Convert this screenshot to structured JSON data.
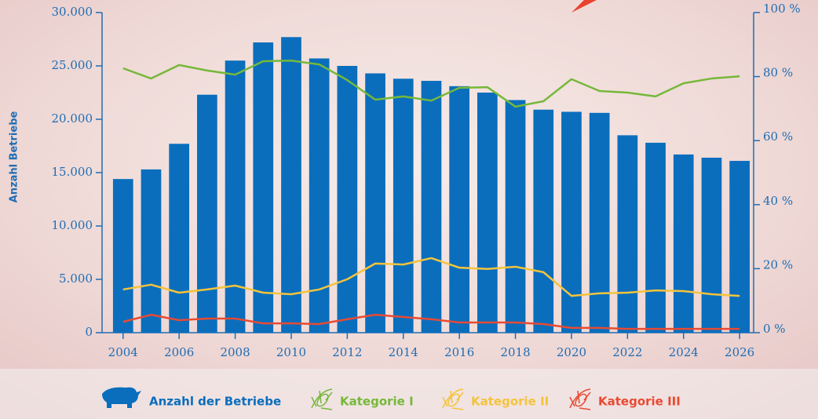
{
  "chart_data": {
    "type": "bar",
    "y_label": "Anzahl Betriebe",
    "x": [
      2004,
      2005,
      2006,
      2007,
      2008,
      2009,
      2010,
      2011,
      2012,
      2013,
      2014,
      2015,
      2016,
      2017,
      2018,
      2019,
      2020,
      2021,
      2022,
      2023,
      2024,
      2025,
      2026
    ],
    "xlim": [
      2003.25,
      2026.5
    ],
    "xticks": [
      2004,
      2006,
      2008,
      2010,
      2012,
      2014,
      2016,
      2018,
      2020,
      2022,
      2024,
      2026
    ],
    "ylim": [
      0,
      30000
    ],
    "yticks": [
      0,
      {
        "value": 5000,
        "label": "5.000"
      },
      {
        "value": 10000,
        "label": "10.000"
      },
      {
        "value": 15000,
        "label": "15.000"
      },
      {
        "value": 20000,
        "label": "20.000"
      },
      {
        "value": 25000,
        "label": "25.000"
      },
      {
        "value": 30000,
        "label": "30.000"
      }
    ],
    "y2lim": [
      0,
      100
    ],
    "y2ticks": [
      {
        "value": 0,
        "label": "0 %"
      },
      {
        "value": 20,
        "label": "20 %"
      },
      {
        "value": 40,
        "label": "40 %"
      },
      {
        "value": 60,
        "label": "60 %"
      },
      {
        "value": 80,
        "label": "80 %"
      },
      {
        "value": 100,
        "label": "100 %"
      }
    ],
    "series": [
      {
        "name": "Anzahl der Betriebe",
        "type": "bar",
        "axis": "y",
        "color": "#0a6ebd",
        "values": [
          14400,
          15300,
          17700,
          22300,
          25500,
          27200,
          27700,
          25700,
          25000,
          24300,
          23800,
          23600,
          23100,
          22500,
          21800,
          20900,
          20700,
          20600,
          18500,
          17800,
          16700,
          16400,
          16100
        ]
      },
      {
        "name": "Kategorie I",
        "type": "line",
        "axis": "y2",
        "color": "#76b83a",
        "values": [
          82.6,
          79.4,
          83.6,
          81.9,
          80.6,
          84.8,
          85,
          83.8,
          78.9,
          72.8,
          73.8,
          72.5,
          76.5,
          76.7,
          70.6,
          72.3,
          79.2,
          75.5,
          75,
          73.8,
          77.9,
          79.4,
          80.1
        ]
      },
      {
        "name": "Kategorie II",
        "type": "line",
        "axis": "y2",
        "color": "#f5c33b",
        "values": [
          13.5,
          15,
          12.5,
          13.5,
          14.7,
          12.5,
          12,
          13.5,
          16.7,
          21.6,
          21.3,
          23.3,
          20.3,
          19.9,
          20.6,
          18.9,
          11.5,
          12.3,
          12.5,
          13.2,
          13,
          12,
          11.5
        ]
      },
      {
        "name": "Kategorie III",
        "type": "line",
        "axis": "y2",
        "color": "#e84a33",
        "values": [
          3.4,
          5.6,
          3.9,
          4.4,
          4.4,
          2.9,
          2.9,
          2.7,
          4.2,
          5.6,
          4.9,
          4.2,
          3.2,
          3.2,
          3.2,
          2.7,
          1.5,
          1.5,
          1.2,
          1.2,
          1.2,
          1.2,
          1.2
        ]
      }
    ]
  }
}
